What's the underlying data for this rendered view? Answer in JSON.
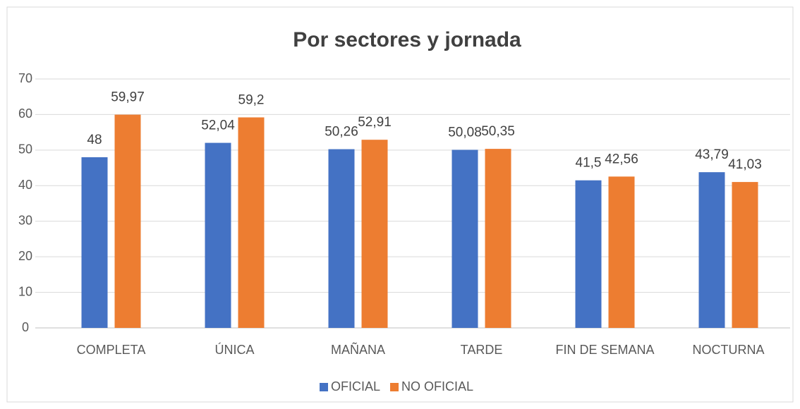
{
  "chart_data": {
    "type": "bar",
    "title": "Por sectores y jornada",
    "categories": [
      "COMPLETA",
      "ÚNICA",
      "MAÑANA",
      "TARDE",
      "FIN DE SEMANA",
      "NOCTURNA"
    ],
    "series": [
      {
        "name": "OFICIAL",
        "color": "#4472c4",
        "values": [
          48,
          52.04,
          50.26,
          50.08,
          41.5,
          43.79
        ],
        "value_labels": [
          "48",
          "52,04",
          "50,26",
          "50,08",
          "41,5",
          "43,79"
        ]
      },
      {
        "name": "NO OFICIAL",
        "color": "#ed7d31",
        "values": [
          59.97,
          59.2,
          52.91,
          50.35,
          42.56,
          41.03
        ],
        "value_labels": [
          "59,97",
          "59,2",
          "52,91",
          "50,35",
          "42,56",
          "41,03"
        ]
      }
    ],
    "ylim": [
      0,
      70
    ],
    "yticks": [
      0,
      10,
      20,
      30,
      40,
      50,
      60,
      70
    ],
    "grid": true,
    "legend": "bottom"
  }
}
